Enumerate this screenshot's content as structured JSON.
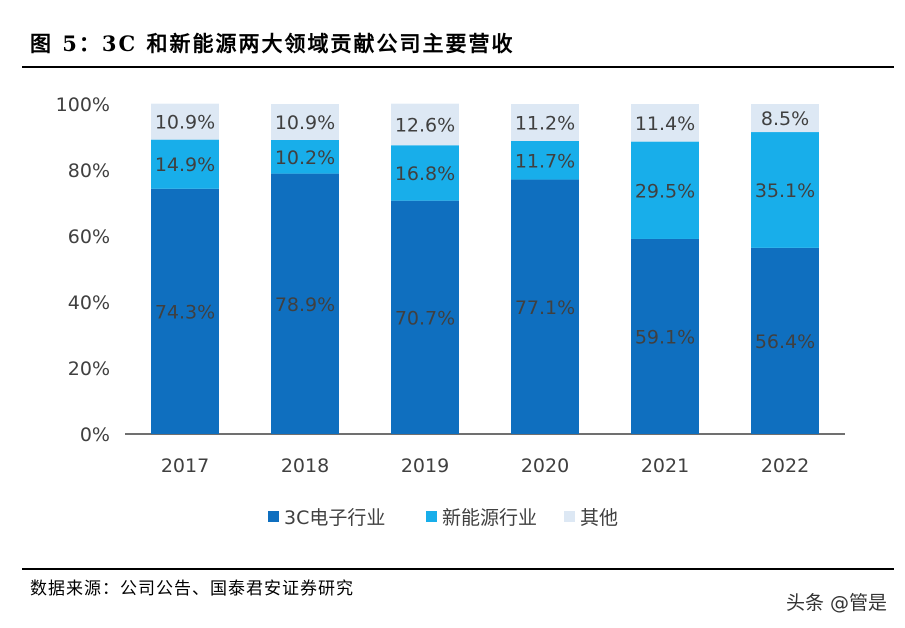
{
  "title": "图 5：3C 和新能源两大领域贡献公司主要营收",
  "source": "数据来源：公司公告、国泰君安证券研究",
  "watermark": "头条 @管是",
  "chart_data": {
    "type": "bar",
    "stacked": true,
    "categories": [
      "2017",
      "2018",
      "2019",
      "2020",
      "2021",
      "2022"
    ],
    "series": [
      {
        "name": "3C电子行业",
        "color": "#0F6FBF",
        "values": [
          74.3,
          78.9,
          70.7,
          77.1,
          59.1,
          56.4
        ],
        "labels": [
          "74.3%",
          "78.9%",
          "70.7%",
          "77.1%",
          "59.1%",
          "56.4%"
        ]
      },
      {
        "name": "新能源行业",
        "color": "#18AEEA",
        "values": [
          14.9,
          10.2,
          16.8,
          11.7,
          29.5,
          35.1
        ],
        "labels": [
          "14.9%",
          "10.2%",
          "16.8%",
          "11.7%",
          "29.5%",
          "35.1%"
        ]
      },
      {
        "name": "其他",
        "color": "#DDE8F4",
        "values": [
          10.9,
          10.9,
          12.6,
          11.2,
          11.4,
          8.5
        ],
        "labels": [
          "10.9%",
          "10.9%",
          "12.6%",
          "11.2%",
          "11.4%",
          "8.5%"
        ]
      }
    ],
    "yticks": [
      "0%",
      "20%",
      "40%",
      "60%",
      "80%",
      "100%"
    ],
    "ylim": [
      0,
      100
    ],
    "grid": false,
    "legend": "bottom"
  }
}
